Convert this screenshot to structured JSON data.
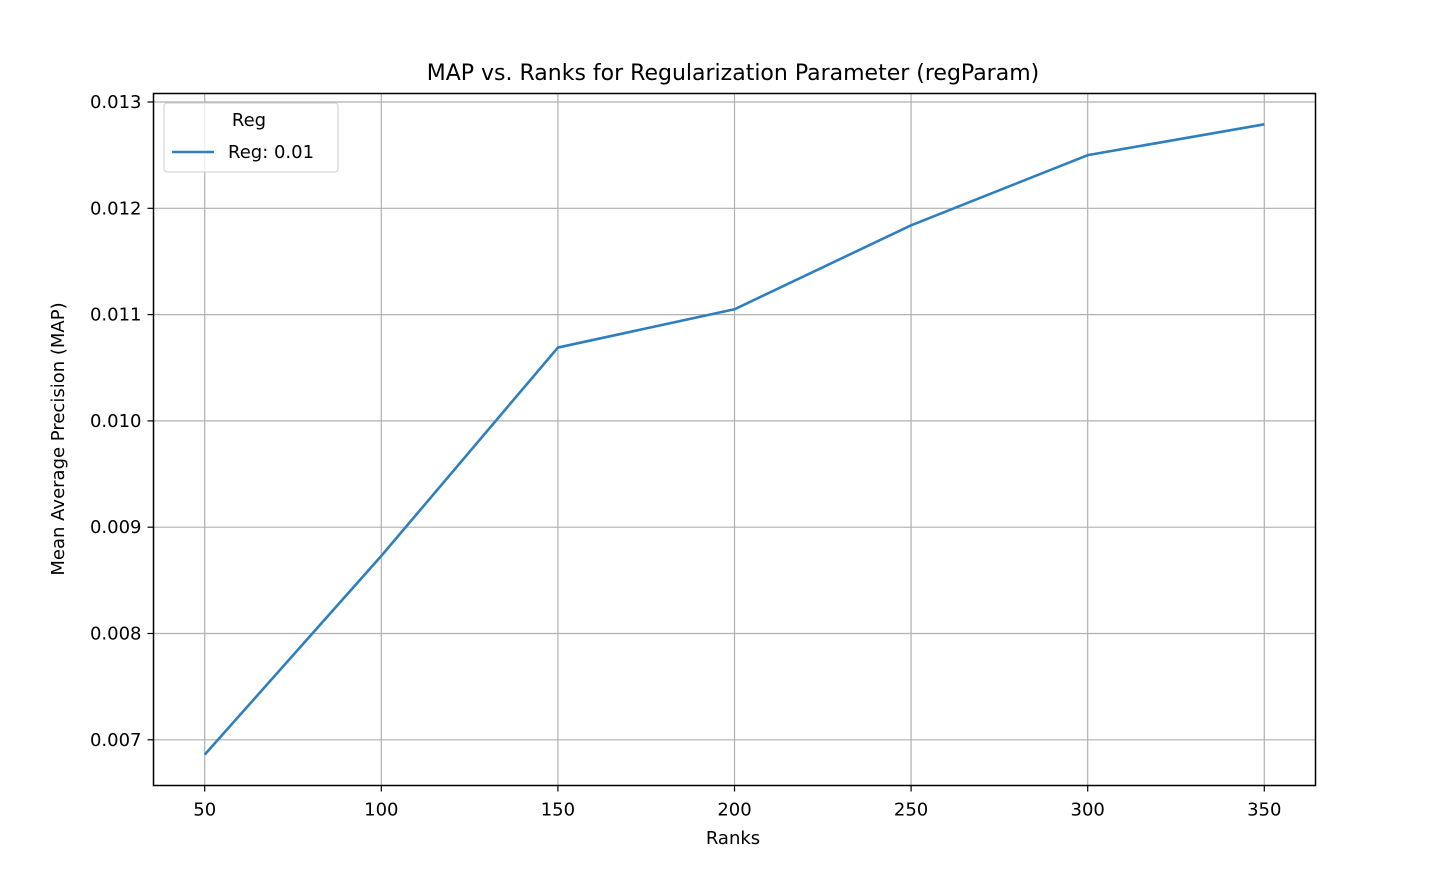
{
  "chart_data": {
    "type": "line",
    "title": "MAP vs. Ranks for Regularization Parameter (regParam)",
    "xlabel": "Ranks",
    "ylabel": "Mean Average Precision (MAP)",
    "x": [
      50,
      100,
      150,
      200,
      250,
      300,
      350
    ],
    "xlim": [
      35.5,
      364.5
    ],
    "ylim": [
      0.00657,
      0.01308
    ],
    "xticks": [
      50,
      100,
      150,
      200,
      250,
      300,
      350
    ],
    "xtick_labels": [
      "50",
      "100",
      "150",
      "200",
      "250",
      "300",
      "350"
    ],
    "yticks": [
      0.007,
      0.008,
      0.009,
      0.01,
      0.011,
      0.012,
      0.013
    ],
    "ytick_labels": [
      "0.007",
      "0.008",
      "0.009",
      "0.010",
      "0.011",
      "0.012",
      "0.013"
    ],
    "grid": true,
    "legend": {
      "title": "Reg",
      "placement": "top-left"
    },
    "series": [
      {
        "name": "Reg: 0.01",
        "color": "#2f7fbd",
        "values": [
          0.00686,
          0.00873,
          0.01069,
          0.01105,
          0.01184,
          0.0125,
          0.01279
        ]
      }
    ]
  }
}
